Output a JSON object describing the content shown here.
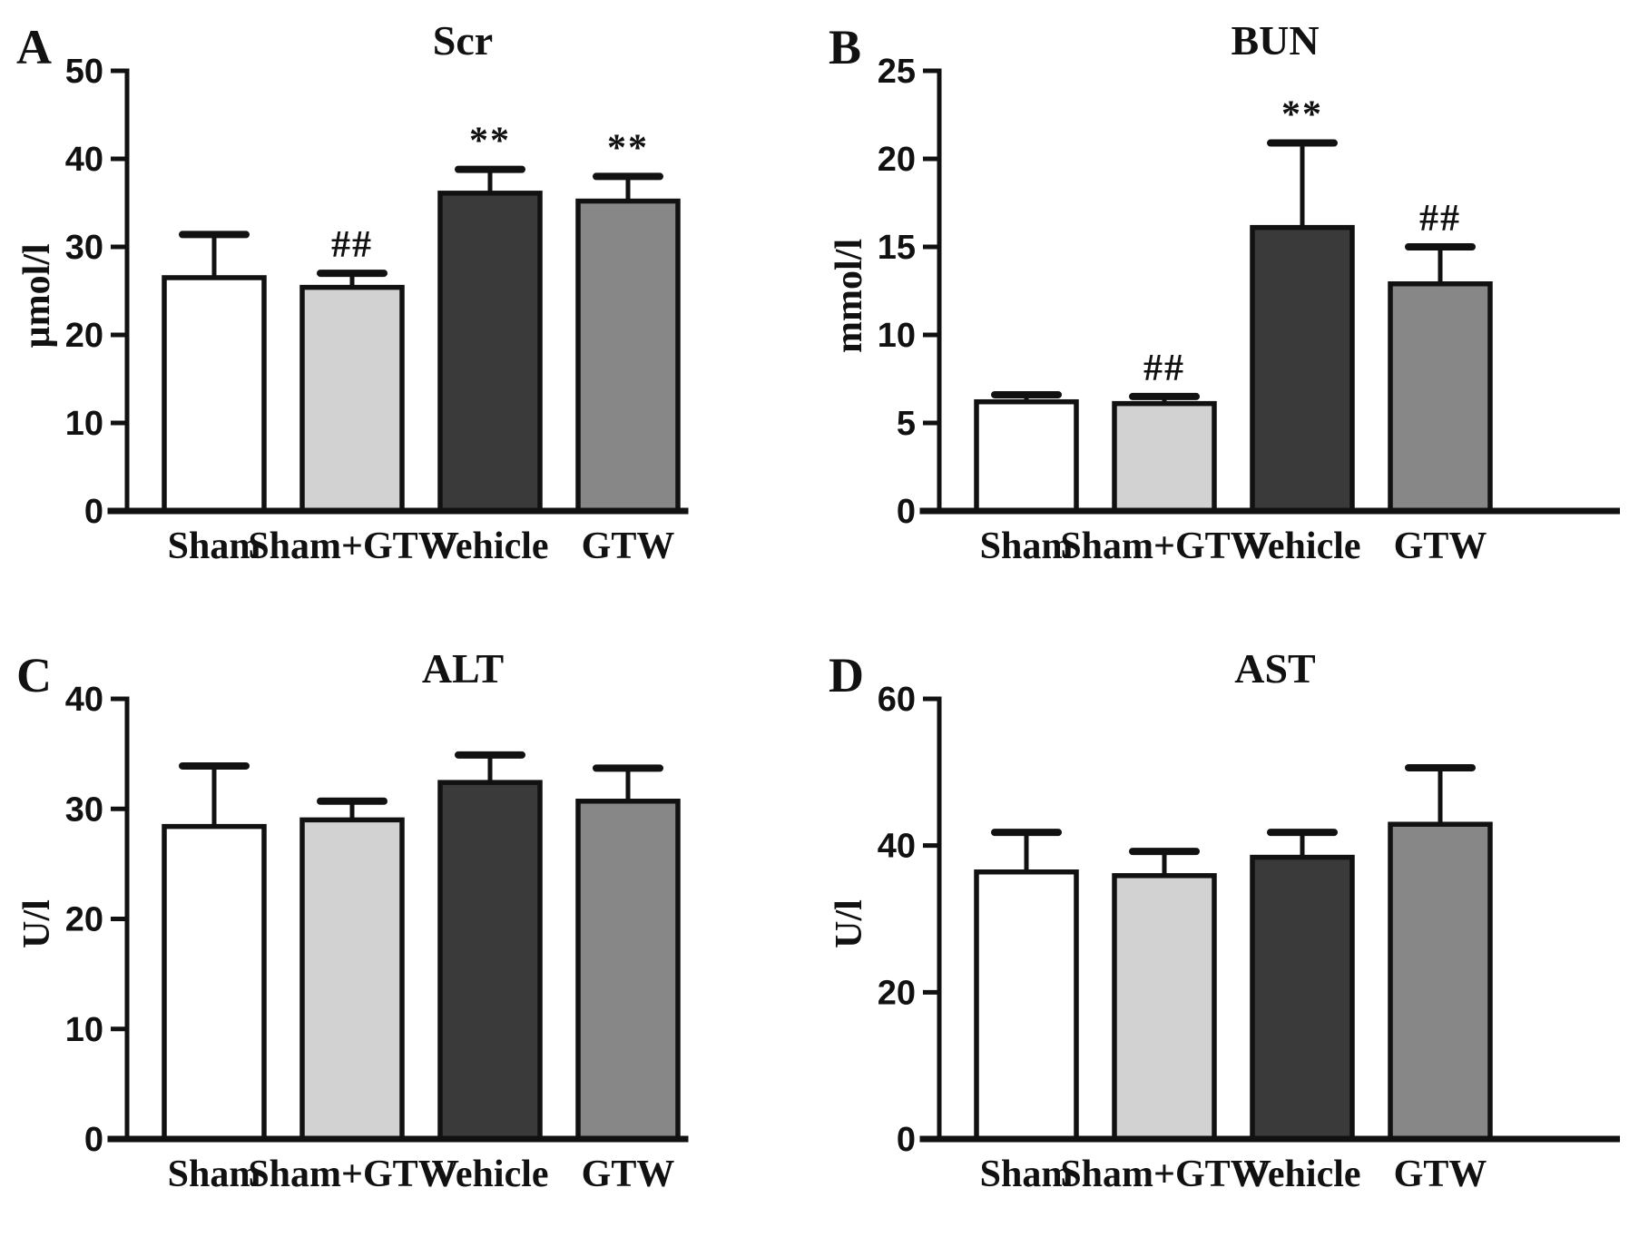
{
  "figure": {
    "bar_fill_colors": [
      "#ffffff",
      "#d2d2d2",
      "#3a3a3a",
      "#878787"
    ],
    "bar_stroke_color": "#111111",
    "text_color": "#111111",
    "background_color": "#ffffff"
  },
  "chart_data": [
    {
      "type": "bar",
      "panel_label": "A",
      "title": "Scr",
      "ylabel": "µmol/l",
      "xlabel": "",
      "categories": [
        "Sham",
        "Sham+GTW",
        "Vehicle",
        "GTW"
      ],
      "values": [
        26.5,
        25.4,
        36.1,
        35.2
      ],
      "errors_plus": [
        4.9,
        1.6,
        2.7,
        2.8
      ],
      "significance": [
        "",
        "##",
        "**",
        "**"
      ],
      "ylim": [
        0,
        50
      ],
      "yticks": [
        0,
        10,
        20,
        30,
        40,
        50
      ],
      "grid": false,
      "legend": "none",
      "error_bars": "upper",
      "baseline_extends_right": false
    },
    {
      "type": "bar",
      "panel_label": "B",
      "title": "BUN",
      "ylabel": "mmol/l",
      "xlabel": "",
      "categories": [
        "Sham",
        "Sham+GTW",
        "Vehicle",
        "GTW"
      ],
      "values": [
        6.2,
        6.1,
        16.1,
        12.9
      ],
      "errors_plus": [
        0.4,
        0.4,
        4.8,
        2.1
      ],
      "significance": [
        "",
        "##",
        "**",
        "##"
      ],
      "ylim": [
        0,
        25
      ],
      "yticks": [
        0,
        5,
        10,
        15,
        20,
        25
      ],
      "grid": false,
      "legend": "none",
      "error_bars": "upper",
      "baseline_extends_right": true
    },
    {
      "type": "bar",
      "panel_label": "C",
      "title": "ALT",
      "ylabel": "U/l",
      "xlabel": "",
      "categories": [
        "Sham",
        "Sham+GTW",
        "Vehicle",
        "GTW"
      ],
      "values": [
        28.4,
        29.0,
        32.4,
        30.7
      ],
      "errors_plus": [
        5.5,
        1.7,
        2.5,
        3.0
      ],
      "significance": [
        "",
        "",
        "",
        ""
      ],
      "ylim": [
        0,
        40
      ],
      "yticks": [
        0,
        10,
        20,
        30,
        40
      ],
      "grid": false,
      "legend": "none",
      "error_bars": "upper",
      "baseline_extends_right": false
    },
    {
      "type": "bar",
      "panel_label": "D",
      "title": "AST",
      "ylabel": "U/l",
      "xlabel": "",
      "categories": [
        "Sham",
        "Sham+GTW",
        "Vehicle",
        "GTW"
      ],
      "values": [
        36.4,
        35.9,
        38.4,
        42.9
      ],
      "errors_plus": [
        5.4,
        3.3,
        3.4,
        7.7
      ],
      "significance": [
        "",
        "",
        "",
        ""
      ],
      "ylim": [
        0,
        60
      ],
      "yticks": [
        0,
        20,
        40,
        60
      ],
      "grid": false,
      "legend": "none",
      "error_bars": "upper",
      "baseline_extends_right": true
    }
  ]
}
